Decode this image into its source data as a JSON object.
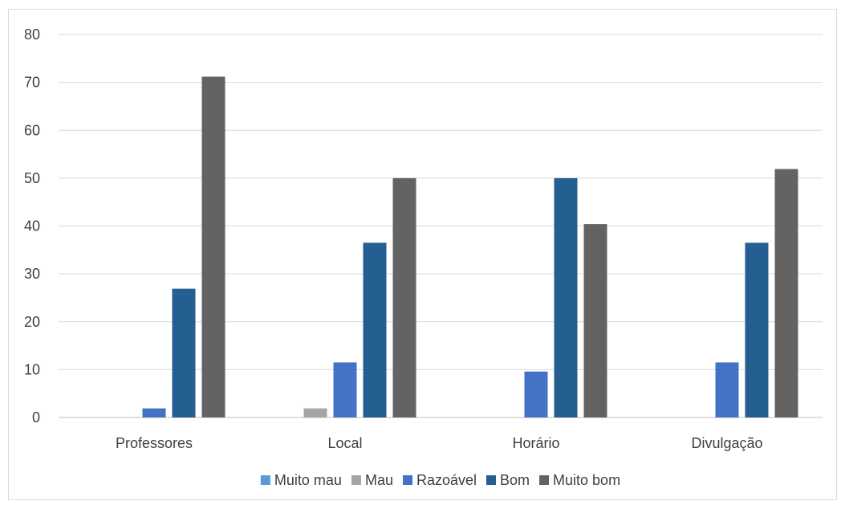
{
  "chart_data": {
    "type": "bar",
    "title": "",
    "xlabel": "",
    "ylabel": "",
    "categories": [
      "Professores",
      "Local",
      "Horário",
      "Divulgação"
    ],
    "ylim": [
      0,
      80
    ],
    "yticks": [
      0,
      10,
      20,
      30,
      40,
      50,
      60,
      70,
      80
    ],
    "grid": true,
    "legend_position": "bottom",
    "series": [
      {
        "name": "Muito mau",
        "color": "#5b9bd5",
        "values": [
          0,
          0,
          0,
          0
        ]
      },
      {
        "name": "Mau",
        "color": "#a5a5a5",
        "values": [
          0,
          1.9,
          0,
          0
        ]
      },
      {
        "name": "Razoável",
        "color": "#4472c4",
        "values": [
          1.9,
          11.5,
          9.6,
          11.5
        ]
      },
      {
        "name": "Bom",
        "color": "#255e91",
        "values": [
          26.9,
          36.5,
          50,
          36.5
        ]
      },
      {
        "name": "Muito bom",
        "color": "#636363",
        "values": [
          71.2,
          50,
          40.4,
          51.9
        ]
      }
    ]
  }
}
